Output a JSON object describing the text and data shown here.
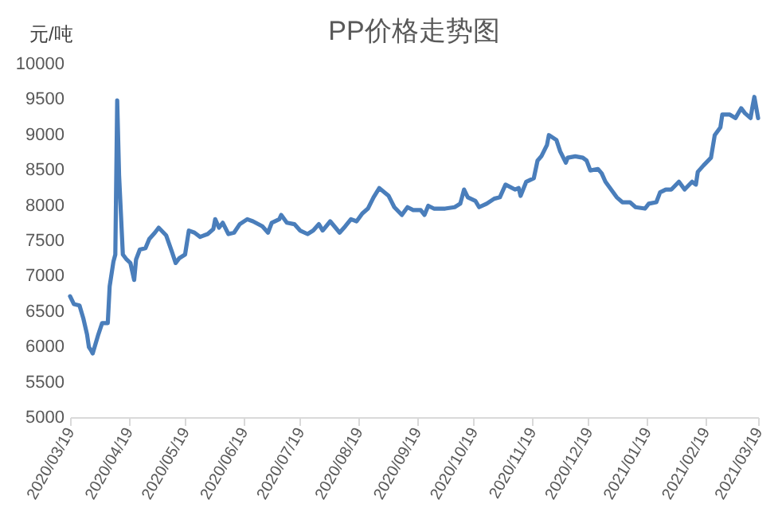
{
  "chart_data": {
    "type": "line",
    "title": "PP价格走势图",
    "ylabel": "元/吨",
    "x": [
      "2020-03-19",
      "2020-03-21",
      "2020-03-24",
      "2020-03-26",
      "2020-03-28",
      "2020-03-29",
      "2020-03-30",
      "2020-03-31",
      "2020-04-03",
      "2020-04-05",
      "2020-04-08",
      "2020-04-09",
      "2020-04-11",
      "2020-04-12",
      "2020-04-13",
      "2020-04-14",
      "2020-04-16",
      "2020-04-18",
      "2020-04-20",
      "2020-04-22",
      "2020-04-23",
      "2020-04-25",
      "2020-04-28",
      "2020-04-30",
      "2020-05-03",
      "2020-05-05",
      "2020-05-09",
      "2020-05-12",
      "2020-05-14",
      "2020-05-16",
      "2020-05-19",
      "2020-05-21",
      "2020-05-24",
      "2020-05-27",
      "2020-05-31",
      "2020-06-03",
      "2020-06-04",
      "2020-06-06",
      "2020-06-08",
      "2020-06-11",
      "2020-06-14",
      "2020-06-17",
      "2020-06-21",
      "2020-06-24",
      "2020-06-29",
      "2020-07-02",
      "2020-07-04",
      "2020-07-08",
      "2020-07-09",
      "2020-07-12",
      "2020-07-16",
      "2020-07-19",
      "2020-07-23",
      "2020-07-26",
      "2020-07-29",
      "2020-07-31",
      "2020-08-04",
      "2020-08-09",
      "2020-08-12",
      "2020-08-15",
      "2020-08-18",
      "2020-08-21",
      "2020-08-24",
      "2020-08-27",
      "2020-08-30",
      "2020-09-04",
      "2020-09-07",
      "2020-09-11",
      "2020-09-14",
      "2020-09-17",
      "2020-09-21",
      "2020-09-23",
      "2020-09-25",
      "2020-09-28",
      "2020-10-04",
      "2020-10-09",
      "2020-10-12",
      "2020-10-14",
      "2020-10-16",
      "2020-10-20",
      "2020-10-22",
      "2020-10-26",
      "2020-10-30",
      "2020-11-02",
      "2020-11-05",
      "2020-11-10",
      "2020-11-12",
      "2020-11-13",
      "2020-11-16",
      "2020-11-20",
      "2020-11-22",
      "2020-11-24",
      "2020-11-27",
      "2020-11-28",
      "2020-12-02",
      "2020-12-04",
      "2020-12-07",
      "2020-12-08",
      "2020-12-12",
      "2020-12-16",
      "2020-12-18",
      "2020-12-20",
      "2020-12-24",
      "2020-12-26",
      "2020-12-28",
      "2020-12-31",
      "2021-01-03",
      "2021-01-06",
      "2021-01-10",
      "2021-01-13",
      "2021-01-18",
      "2021-01-20",
      "2021-01-24",
      "2021-01-26",
      "2021-01-29",
      "2021-02-01",
      "2021-02-05",
      "2021-02-08",
      "2021-02-12",
      "2021-02-14",
      "2021-02-15",
      "2021-02-18",
      "2021-02-22",
      "2021-02-24",
      "2021-02-27",
      "2021-02-28",
      "2021-03-04",
      "2021-03-07",
      "2021-03-10",
      "2021-03-12",
      "2021-03-15",
      "2021-03-16",
      "2021-03-17",
      "2021-03-19"
    ],
    "series": [
      {
        "color": "#4a7ebb",
        "values": [
          6710,
          6600,
          6580,
          6400,
          6170,
          5990,
          5950,
          5900,
          6170,
          6330,
          6330,
          6850,
          7200,
          7300,
          9480,
          8420,
          7300,
          7230,
          7180,
          6940,
          7230,
          7370,
          7390,
          7520,
          7610,
          7680,
          7570,
          7340,
          7180,
          7250,
          7300,
          7640,
          7610,
          7550,
          7590,
          7660,
          7800,
          7680,
          7750,
          7590,
          7610,
          7730,
          7800,
          7770,
          7700,
          7610,
          7750,
          7800,
          7860,
          7750,
          7730,
          7640,
          7590,
          7640,
          7730,
          7640,
          7770,
          7610,
          7700,
          7800,
          7770,
          7880,
          7950,
          8110,
          8240,
          8130,
          7970,
          7860,
          7970,
          7930,
          7930,
          7860,
          7990,
          7950,
          7950,
          7970,
          8020,
          8220,
          8110,
          8060,
          7970,
          8020,
          8090,
          8110,
          8290,
          8220,
          8240,
          8130,
          8330,
          8380,
          8630,
          8690,
          8850,
          8990,
          8920,
          8760,
          8600,
          8670,
          8690,
          8670,
          8630,
          8490,
          8510,
          8450,
          8330,
          8220,
          8110,
          8040,
          8040,
          7970,
          7950,
          8020,
          8040,
          8180,
          8220,
          8220,
          8330,
          8220,
          8330,
          8290,
          8470,
          8560,
          8670,
          8990,
          9100,
          9280,
          9280,
          9230,
          9370,
          9300,
          9230,
          9390,
          9530,
          9230
        ]
      }
    ],
    "xlim": [
      "2020-03-19",
      "2021-03-19"
    ],
    "xticks": [
      {
        "value": "2020-03-19",
        "label": "2020/03/19"
      },
      {
        "value": "2020-04-19",
        "label": "2020/04/19"
      },
      {
        "value": "2020-05-19",
        "label": "2020/05/19"
      },
      {
        "value": "2020-06-19",
        "label": "2020/06/19"
      },
      {
        "value": "2020-07-19",
        "label": "2020/07/19"
      },
      {
        "value": "2020-08-19",
        "label": "2020/08/19"
      },
      {
        "value": "2020-09-19",
        "label": "2020/09/19"
      },
      {
        "value": "2020-10-19",
        "label": "2020/10/19"
      },
      {
        "value": "2020-11-19",
        "label": "2020/11/19"
      },
      {
        "value": "2020-12-19",
        "label": "2020/12/19"
      },
      {
        "value": "2021-01-19",
        "label": "2021/01/19"
      },
      {
        "value": "2021-02-19",
        "label": "2021/02/19"
      },
      {
        "value": "2021-03-19",
        "label": "2021/03/19"
      }
    ],
    "ylim": [
      5000,
      10000
    ],
    "yticks": [
      5000,
      5500,
      6000,
      6500,
      7000,
      7500,
      8000,
      8500,
      9000,
      9500,
      10000
    ]
  }
}
